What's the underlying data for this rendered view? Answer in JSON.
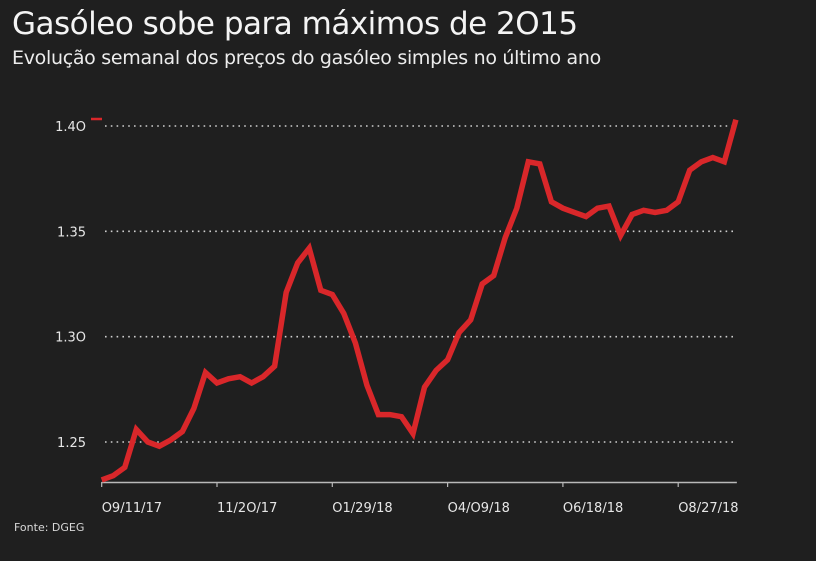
{
  "chart_data": {
    "type": "line",
    "title": "Gasóleo sobe para máximos de 2O15",
    "subtitle": "Evolução semanal dos preços do gasóleo simples no último ano",
    "source": "Fonte: DGEG",
    "xlabel": "",
    "ylabel": "",
    "ylim": [
      1.23,
      1.405
    ],
    "grid": true,
    "yticks": [
      {
        "value": 1.4,
        "label": "1.4O"
      },
      {
        "value": 1.35,
        "label": "1.35"
      },
      {
        "value": 1.3,
        "label": "1.3O"
      },
      {
        "value": 1.25,
        "label": "1.25"
      }
    ],
    "xticks": [
      {
        "index": 0,
        "label": "O9/11/17"
      },
      {
        "index": 10,
        "label": "11/2O/17"
      },
      {
        "index": 20,
        "label": "O1/29/18"
      },
      {
        "index": 30,
        "label": "O4/O9/18"
      },
      {
        "index": 40,
        "label": "O6/18/18"
      },
      {
        "index": 50,
        "label": "O8/27/18"
      }
    ],
    "series": [
      {
        "name": "Gasóleo simples",
        "color": "#d9272a",
        "values": [
          1.232,
          1.234,
          1.238,
          1.256,
          1.25,
          1.248,
          1.251,
          1.255,
          1.266,
          1.283,
          1.278,
          1.28,
          1.281,
          1.278,
          1.281,
          1.286,
          1.321,
          1.335,
          1.342,
          1.322,
          1.32,
          1.311,
          1.297,
          1.277,
          1.263,
          1.263,
          1.262,
          1.254,
          1.276,
          1.284,
          1.289,
          1.302,
          1.308,
          1.325,
          1.329,
          1.347,
          1.361,
          1.383,
          1.382,
          1.364,
          1.361,
          1.359,
          1.357,
          1.361,
          1.362,
          1.348,
          1.358,
          1.36,
          1.359,
          1.36,
          1.364,
          1.379,
          1.383,
          1.385,
          1.383,
          1.403
        ]
      }
    ]
  }
}
